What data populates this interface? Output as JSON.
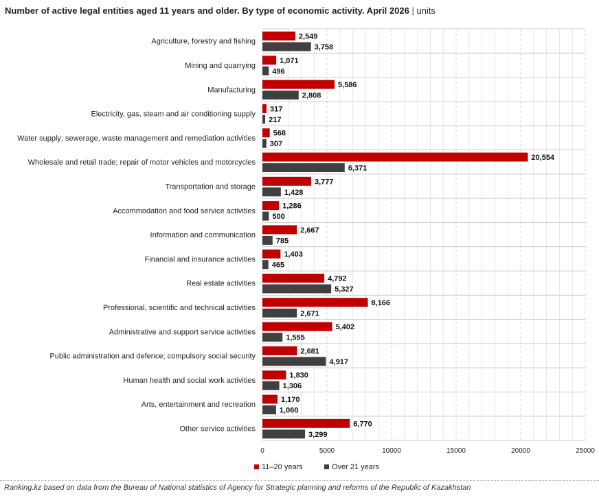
{
  "header": {
    "title": "Number of active legal entities aged 11 years and older. By type of economic activity. April 2026",
    "separator": "|",
    "unit": "units"
  },
  "source": "Ranking.kz based on data from the Bureau of National statistics of Agency for Strategic planning and reforms of the Republic of Kazakhstan",
  "colors": {
    "series_1": "#c00000",
    "series_2": "#404040",
    "grid": "#d9d9d9",
    "row_divider": "#bfbfbf"
  },
  "chart_data": {
    "type": "bar",
    "orientation": "horizontal",
    "categories": [
      "Agriculture, forestry and fishing",
      "Mining and quarrying",
      "Manufacturing",
      "Electricity, gas, steam and air conditioning supply",
      "Water supply; sewerage, waste management and remediation activities",
      "Wholesale and retail trade; repair of motor vehicles and motorcycles",
      "Transportation and storage",
      "Accommodation and food service activities",
      "Information and communication",
      "Financial and insurance activities",
      "Real estate activities",
      "Professional, scientific and technical activities",
      "Administrative and support service activities",
      "Public administration and defence; compulsory social security",
      "Human health and social work activities",
      "Arts, entertainment and recreation",
      "Other service activities"
    ],
    "series": [
      {
        "name": "11–20 years",
        "values": [
          2549,
          1071,
          5586,
          317,
          568,
          20554,
          3777,
          1286,
          2667,
          1403,
          4792,
          8166,
          5402,
          2681,
          1830,
          1170,
          6770
        ],
        "labels": [
          "2,549",
          "1,071",
          "5,586",
          "317",
          "568",
          "20,554",
          "3,777",
          "1,286",
          "2,667",
          "1,403",
          "4,792",
          "8,166",
          "5,402",
          "2,681",
          "1,830",
          "1,170",
          "6,770"
        ]
      },
      {
        "name": "Over 21 years",
        "values": [
          3758,
          496,
          2808,
          217,
          307,
          6371,
          1428,
          500,
          785,
          465,
          5327,
          2671,
          1555,
          4917,
          1306,
          1060,
          3299
        ],
        "labels": [
          "3,758",
          "496",
          "2,808",
          "217",
          "307",
          "6,371",
          "1,428",
          "500",
          "785",
          "465",
          "5,327",
          "2,671",
          "1,555",
          "4,917",
          "1,306",
          "1,060",
          "3,299"
        ]
      }
    ],
    "xlim": [
      0,
      25000
    ],
    "xticks": [
      0,
      5000,
      10000,
      15000,
      20000,
      25000
    ],
    "xtick_labels": [
      "0",
      "5000",
      "10000",
      "15000",
      "20000",
      "25000"
    ],
    "grid": true,
    "legend_position": "bottom-left"
  }
}
